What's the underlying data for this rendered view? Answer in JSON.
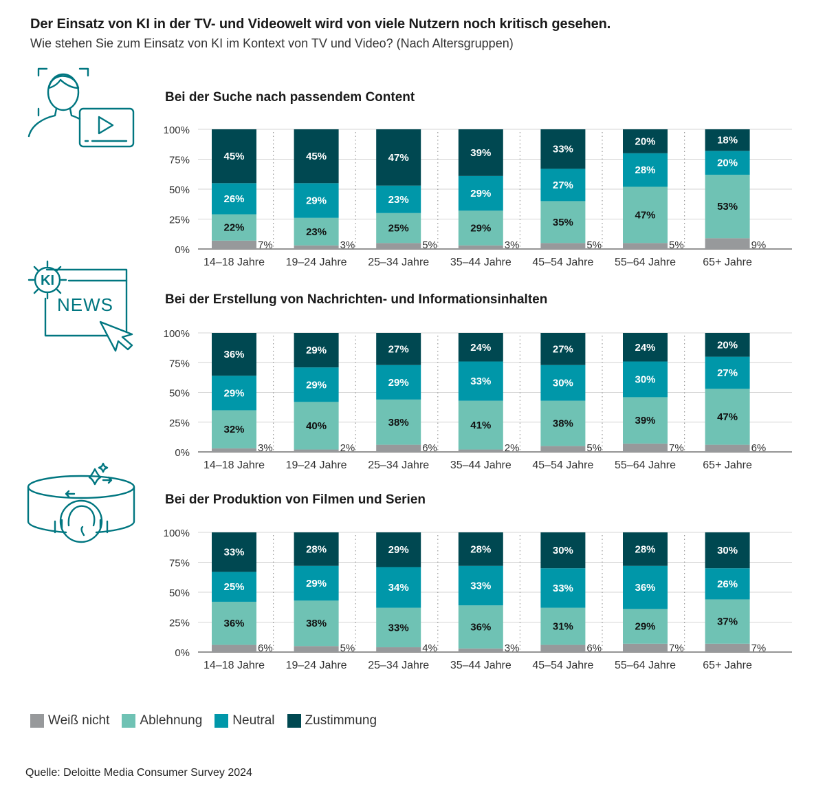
{
  "title": "Der Einsatz von KI in der TV- und Videowelt wird von viele Nutzern noch kritisch gesehen.",
  "subtitle": "Wie stehen Sie zum Einsatz von KI im Kontext von TV und Video? (Nach Altersgruppen)",
  "colors": {
    "weiss_nicht": "#97999b",
    "ablehnung": "#6fc2b4",
    "neutral": "#0097a9",
    "zustimmung": "#004851",
    "icon_teal": "#007680"
  },
  "legend": [
    {
      "label": "Weiß nicht",
      "color": "#97999b"
    },
    {
      "label": "Ablehnung",
      "color": "#6fc2b4"
    },
    {
      "label": "Neutral",
      "color": "#0097a9"
    },
    {
      "label": "Zustimmung",
      "color": "#004851"
    }
  ],
  "icons": {
    "panel1": "person-video-icon",
    "panel2": "ki-news-icon",
    "panel3": "immersive-ai-icon",
    "panel2_text_ki": "KI",
    "panel2_text_news": "NEWS"
  },
  "source": "Quelle: Deloitte Media Consumer Survey 2024",
  "chart_data": [
    {
      "type": "bar",
      "stacked": true,
      "title": "Bei der Suche nach passendem Content",
      "categories": [
        "14–18 Jahre",
        "19–24 Jahre",
        "25–34 Jahre",
        "35–44 Jahre",
        "45–54 Jahre",
        "55–64 Jahre",
        "65+ Jahre"
      ],
      "ylim": [
        0,
        100
      ],
      "yticks": [
        "0%",
        "25%",
        "50%",
        "75%",
        "100%"
      ],
      "series": [
        {
          "name": "Weiß nicht",
          "values": [
            7,
            3,
            5,
            3,
            5,
            5,
            9
          ]
        },
        {
          "name": "Ablehnung",
          "values": [
            22,
            23,
            25,
            29,
            35,
            47,
            53
          ]
        },
        {
          "name": "Neutral",
          "values": [
            26,
            29,
            23,
            29,
            27,
            28,
            20
          ]
        },
        {
          "name": "Zustimmung",
          "values": [
            45,
            45,
            47,
            39,
            33,
            20,
            18
          ]
        }
      ]
    },
    {
      "type": "bar",
      "stacked": true,
      "title": "Bei der Erstellung von Nachrichten- und  Informationsinhalten",
      "categories": [
        "14–18 Jahre",
        "19–24 Jahre",
        "25–34 Jahre",
        "35–44 Jahre",
        "45–54 Jahre",
        "55–64 Jahre",
        "65+ Jahre"
      ],
      "ylim": [
        0,
        100
      ],
      "yticks": [
        "0%",
        "25%",
        "50%",
        "75%",
        "100%"
      ],
      "series": [
        {
          "name": "Weiß nicht",
          "values": [
            3,
            2,
            6,
            2,
            5,
            7,
            6
          ]
        },
        {
          "name": "Ablehnung",
          "values": [
            32,
            40,
            38,
            41,
            38,
            39,
            47
          ]
        },
        {
          "name": "Neutral",
          "values": [
            29,
            29,
            29,
            33,
            30,
            30,
            27
          ]
        },
        {
          "name": "Zustimmung",
          "values": [
            36,
            29,
            27,
            24,
            27,
            24,
            20
          ]
        }
      ]
    },
    {
      "type": "bar",
      "stacked": true,
      "title": "Bei der Produktion von Filmen und Serien",
      "categories": [
        "14–18 Jahre",
        "19–24 Jahre",
        "25–34 Jahre",
        "35–44 Jahre",
        "45–54 Jahre",
        "55–64 Jahre",
        "65+ Jahre"
      ],
      "ylim": [
        0,
        100
      ],
      "yticks": [
        "0%",
        "25%",
        "50%",
        "75%",
        "100%"
      ],
      "series": [
        {
          "name": "Weiß nicht",
          "values": [
            6,
            5,
            4,
            3,
            6,
            7,
            7
          ]
        },
        {
          "name": "Ablehnung",
          "values": [
            36,
            38,
            33,
            36,
            31,
            29,
            37
          ]
        },
        {
          "name": "Neutral",
          "values": [
            25,
            29,
            34,
            33,
            33,
            36,
            26
          ]
        },
        {
          "name": "Zustimmung",
          "values": [
            33,
            28,
            29,
            28,
            30,
            28,
            30
          ]
        }
      ]
    }
  ]
}
